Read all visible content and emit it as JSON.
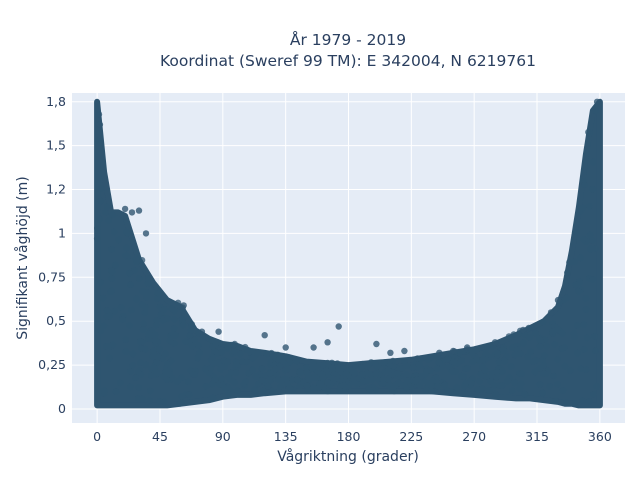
{
  "chart_data": {
    "type": "scatter",
    "title_line1": "År 1979 - 2019",
    "title_line2": "Koordinat (Sweref 99 TM): E 342004, N 6219761",
    "xlabel": "Vågriktning (grader)",
    "ylabel": "Signifikant våghöjd (m)",
    "xlim": [
      -18,
      378
    ],
    "ylim": [
      -0.08,
      1.8
    ],
    "xticks": [
      0,
      45,
      90,
      135,
      180,
      225,
      270,
      315,
      360
    ],
    "xtick_labels": [
      "0",
      "45",
      "90",
      "135",
      "180",
      "225",
      "270",
      "315",
      "360"
    ],
    "yticks": [
      0,
      0.25,
      0.5,
      0.75,
      1,
      1.25,
      1.5,
      1.75
    ],
    "ytick_labels": [
      "0",
      "0,25",
      "0,5",
      "0,75",
      "1",
      "1,2",
      "1,5",
      "1,8"
    ],
    "grid": true,
    "marker_color": "#2f5570",
    "plot_bg": "#e5ecf6",
    "envelope": {
      "x": [
        0,
        5,
        10,
        15,
        20,
        30,
        40,
        50,
        60,
        70,
        80,
        90,
        100,
        110,
        120,
        135,
        150,
        165,
        180,
        195,
        210,
        225,
        240,
        255,
        270,
        285,
        300,
        310,
        320,
        330,
        335,
        340,
        345,
        350,
        355,
        360
      ],
      "y_upper": [
        1.75,
        1.35,
        1.12,
        1.12,
        1.1,
        0.85,
        0.72,
        0.62,
        0.58,
        0.45,
        0.4,
        0.37,
        0.36,
        0.33,
        0.32,
        0.3,
        0.27,
        0.26,
        0.25,
        0.26,
        0.27,
        0.28,
        0.3,
        0.32,
        0.34,
        0.37,
        0.42,
        0.46,
        0.5,
        0.58,
        0.7,
        0.9,
        1.15,
        1.45,
        1.7,
        1.75
      ],
      "y_lower": [
        0.02,
        0.02,
        0.02,
        0.02,
        0.02,
        0.02,
        0.02,
        0.02,
        0.03,
        0.04,
        0.05,
        0.07,
        0.08,
        0.08,
        0.09,
        0.1,
        0.1,
        0.1,
        0.1,
        0.1,
        0.1,
        0.1,
        0.1,
        0.09,
        0.08,
        0.07,
        0.06,
        0.06,
        0.05,
        0.04,
        0.03,
        0.03,
        0.02,
        0.02,
        0.02,
        0.02
      ]
    },
    "outliers": [
      {
        "x": 20,
        "y": 1.14
      },
      {
        "x": 25,
        "y": 1.12
      },
      {
        "x": 30,
        "y": 1.13
      },
      {
        "x": 35,
        "y": 1.0
      },
      {
        "x": 62,
        "y": 0.59
      },
      {
        "x": 75,
        "y": 0.44
      },
      {
        "x": 87,
        "y": 0.44
      },
      {
        "x": 120,
        "y": 0.42
      },
      {
        "x": 135,
        "y": 0.35
      },
      {
        "x": 155,
        "y": 0.35
      },
      {
        "x": 165,
        "y": 0.38
      },
      {
        "x": 173,
        "y": 0.47
      },
      {
        "x": 200,
        "y": 0.37
      },
      {
        "x": 210,
        "y": 0.32
      },
      {
        "x": 220,
        "y": 0.33
      },
      {
        "x": 245,
        "y": 0.32
      },
      {
        "x": 255,
        "y": 0.33
      },
      {
        "x": 265,
        "y": 0.35
      },
      {
        "x": 285,
        "y": 0.38
      },
      {
        "x": 305,
        "y": 0.45
      },
      {
        "x": 325,
        "y": 0.55
      },
      {
        "x": 330,
        "y": 0.62
      },
      {
        "x": 2,
        "y": 1.62
      },
      {
        "x": 358,
        "y": 1.75
      }
    ]
  }
}
